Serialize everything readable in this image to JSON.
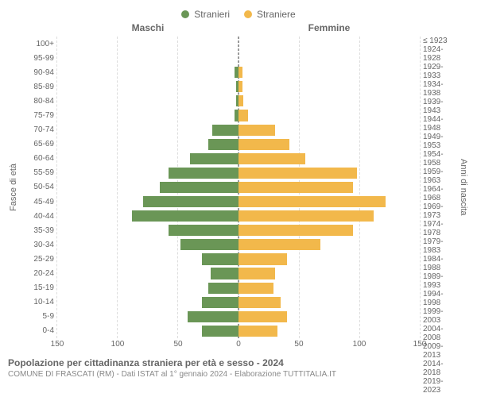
{
  "legend": {
    "male": "Stranieri",
    "female": "Straniere"
  },
  "headers": {
    "male": "Maschi",
    "female": "Femmine"
  },
  "yaxis_left_label": "Fasce di età",
  "yaxis_right_label": "Anni di nascita",
  "colors": {
    "male_bar": "#6a9656",
    "female_bar": "#f2b84b",
    "text": "#666666",
    "grid": "#dddddd",
    "center_line": "#999999",
    "background": "#ffffff"
  },
  "xlim": 150,
  "xticks": [
    0,
    50,
    100,
    150
  ],
  "age_bands": [
    "100+",
    "95-99",
    "90-94",
    "85-89",
    "80-84",
    "75-79",
    "70-74",
    "65-69",
    "60-64",
    "55-59",
    "50-54",
    "45-49",
    "40-44",
    "35-39",
    "30-34",
    "25-29",
    "20-24",
    "15-19",
    "10-14",
    "5-9",
    "0-4"
  ],
  "birth_bands": [
    "≤ 1923",
    "1924-1928",
    "1929-1933",
    "1934-1938",
    "1939-1943",
    "1944-1948",
    "1949-1953",
    "1954-1958",
    "1959-1963",
    "1964-1968",
    "1969-1973",
    "1974-1978",
    "1979-1983",
    "1984-1988",
    "1989-1993",
    "1994-1998",
    "1999-2003",
    "2004-2008",
    "2009-2013",
    "2014-2018",
    "2019-2023"
  ],
  "male_values": [
    0,
    0,
    3,
    2,
    2,
    3,
    22,
    25,
    40,
    58,
    65,
    79,
    88,
    58,
    48,
    30,
    23,
    25,
    30,
    42,
    30
  ],
  "female_values": [
    0,
    0,
    3,
    3,
    4,
    8,
    30,
    42,
    55,
    98,
    95,
    122,
    112,
    95,
    68,
    40,
    30,
    29,
    35,
    40,
    32
  ],
  "caption": {
    "title": "Popolazione per cittadinanza straniera per età e sesso - 2024",
    "subtitle": "COMUNE DI FRASCATI (RM) - Dati ISTAT al 1° gennaio 2024 - Elaborazione TUTTITALIA.IT"
  },
  "style": {
    "tick_fontsize": 10,
    "label_fontsize": 11,
    "legend_fontsize": 12,
    "title_fontsize": 12,
    "subtitle_fontsize": 10,
    "bar_height_pct": 78
  }
}
